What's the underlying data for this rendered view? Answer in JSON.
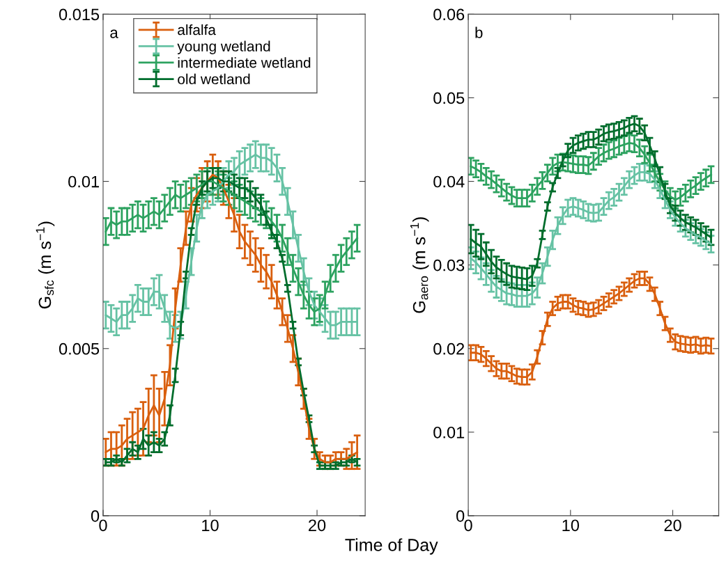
{
  "chart_data": [
    {
      "type": "line",
      "annotations": [
        "a"
      ],
      "xlabel": "Time of Day",
      "ylabel": "G$_{sfc}$ (m s$^{−1}$)",
      "x": [
        0.25,
        0.75,
        1.25,
        1.75,
        2.25,
        2.75,
        3.25,
        3.75,
        4.25,
        4.75,
        5.25,
        5.75,
        6.25,
        6.75,
        7.25,
        7.75,
        8.25,
        8.75,
        9.25,
        9.75,
        10.25,
        10.75,
        11.25,
        11.75,
        12.25,
        12.75,
        13.25,
        13.75,
        14.25,
        14.75,
        15.25,
        15.75,
        16.25,
        16.75,
        17.25,
        17.75,
        18.25,
        18.75,
        19.25,
        19.75,
        20.25,
        20.75,
        21.25,
        21.75,
        22.25,
        22.75,
        23.25,
        23.75
      ],
      "xlim": [
        0,
        24.5
      ],
      "xticks": [
        0,
        10,
        20
      ],
      "ylim": [
        0,
        0.015
      ],
      "yticks": [
        0,
        0.005,
        0.01,
        0.015
      ],
      "grid": false,
      "legend": "top left",
      "marker": "none",
      "line_style": "solid",
      "series": [
        {
          "name": "alfalfa",
          "color": "#d95f0e",
          "values": [
            0.0019,
            0.002,
            0.002,
            0.0021,
            0.0023,
            0.0024,
            0.0025,
            0.0026,
            0.003,
            0.0033,
            0.003,
            0.0035,
            0.0045,
            0.0062,
            0.0075,
            0.0086,
            0.0093,
            0.0096,
            0.0098,
            0.01,
            0.0102,
            0.0101,
            0.0098,
            0.0094,
            0.009,
            0.0085,
            0.0082,
            0.008,
            0.0078,
            0.0075,
            0.0073,
            0.007,
            0.0066,
            0.0061,
            0.0056,
            0.005,
            0.0043,
            0.0035,
            0.0026,
            0.002,
            0.0017,
            0.0016,
            0.0016,
            0.0017,
            0.0017,
            0.0017,
            0.0018,
            0.0019
          ],
          "errors": [
            0.0004,
            0.0005,
            0.0005,
            0.0006,
            0.0006,
            0.0007,
            0.0007,
            0.0008,
            0.0008,
            0.0009,
            0.0008,
            0.0008,
            0.0006,
            0.0006,
            0.0005,
            0.0005,
            0.0005,
            0.0005,
            0.0006,
            0.0006,
            0.0006,
            0.0005,
            0.0005,
            0.0005,
            0.0005,
            0.0005,
            0.0005,
            0.0005,
            0.0005,
            0.0005,
            0.0005,
            0.0005,
            0.0004,
            0.0004,
            0.0004,
            0.0004,
            0.0004,
            0.0003,
            0.0003,
            0.0003,
            0.0002,
            0.0002,
            0.0002,
            0.0002,
            0.0002,
            0.0003,
            0.0004,
            0.0005
          ]
        },
        {
          "name": "young wetland",
          "color": "#66c2a4",
          "values": [
            0.006,
            0.0059,
            0.0058,
            0.006,
            0.006,
            0.0062,
            0.0065,
            0.0064,
            0.0064,
            0.0067,
            0.0067,
            0.0062,
            0.0057,
            0.0056,
            0.0057,
            0.0066,
            0.0076,
            0.0086,
            0.0093,
            0.0096,
            0.0097,
            0.0098,
            0.01,
            0.0102,
            0.0103,
            0.0105,
            0.0106,
            0.0107,
            0.0108,
            0.0107,
            0.0107,
            0.0106,
            0.0104,
            0.01,
            0.0094,
            0.0087,
            0.008,
            0.0073,
            0.0067,
            0.0063,
            0.0061,
            0.0059,
            0.0057,
            0.0057,
            0.0058,
            0.0058,
            0.0058,
            0.0058
          ],
          "errors": [
            0.0004,
            0.0004,
            0.0004,
            0.0004,
            0.0004,
            0.0004,
            0.0004,
            0.0004,
            0.0004,
            0.0004,
            0.0005,
            0.0004,
            0.0004,
            0.0004,
            0.0004,
            0.0004,
            0.0004,
            0.0004,
            0.0004,
            0.0004,
            0.0004,
            0.0004,
            0.0004,
            0.0004,
            0.0004,
            0.0004,
            0.0004,
            0.0004,
            0.0004,
            0.0004,
            0.0004,
            0.0004,
            0.0004,
            0.0004,
            0.0004,
            0.0004,
            0.0004,
            0.0004,
            0.0004,
            0.0004,
            0.0004,
            0.0004,
            0.0004,
            0.0004,
            0.0004,
            0.0004,
            0.0004,
            0.0004
          ]
        },
        {
          "name": "intermediate wetland",
          "color": "#2ca25f",
          "values": [
            0.0085,
            0.0088,
            0.0087,
            0.0088,
            0.0088,
            0.0089,
            0.009,
            0.0089,
            0.009,
            0.0091,
            0.009,
            0.0092,
            0.0094,
            0.0096,
            0.0095,
            0.0096,
            0.0097,
            0.0098,
            0.0099,
            0.01,
            0.01,
            0.0099,
            0.0098,
            0.0097,
            0.0096,
            0.0095,
            0.0094,
            0.0093,
            0.0092,
            0.0091,
            0.009,
            0.0088,
            0.0086,
            0.0083,
            0.0079,
            0.0074,
            0.007,
            0.0066,
            0.0063,
            0.0061,
            0.0062,
            0.0066,
            0.0071,
            0.0074,
            0.0077,
            0.0079,
            0.0081,
            0.0083
          ],
          "errors": [
            0.0004,
            0.0004,
            0.0004,
            0.0004,
            0.0004,
            0.0004,
            0.0004,
            0.0004,
            0.0004,
            0.0004,
            0.0004,
            0.0004,
            0.0004,
            0.0004,
            0.0004,
            0.0004,
            0.0004,
            0.0004,
            0.0004,
            0.0004,
            0.0004,
            0.0004,
            0.0004,
            0.0004,
            0.0004,
            0.0004,
            0.0004,
            0.0004,
            0.0004,
            0.0004,
            0.0004,
            0.0004,
            0.0004,
            0.0004,
            0.0004,
            0.0004,
            0.0004,
            0.0004,
            0.0004,
            0.0004,
            0.0004,
            0.0004,
            0.0004,
            0.0004,
            0.0004,
            0.0004,
            0.0004,
            0.0004
          ]
        },
        {
          "name": "old wetland",
          "color": "#006d2c",
          "values": [
            0.0016,
            0.0016,
            0.0017,
            0.0016,
            0.0018,
            0.002,
            0.0019,
            0.0023,
            0.0021,
            0.0022,
            0.0021,
            0.0023,
            0.003,
            0.0042,
            0.0056,
            0.0072,
            0.0085,
            0.0094,
            0.0098,
            0.01,
            0.0101,
            0.0101,
            0.01,
            0.01,
            0.0099,
            0.0098,
            0.0098,
            0.0097,
            0.0095,
            0.0093,
            0.0089,
            0.0085,
            0.0082,
            0.0077,
            0.0068,
            0.0057,
            0.0046,
            0.0037,
            0.0029,
            0.002,
            0.0015,
            0.0015,
            0.0015,
            0.0015,
            0.0016,
            0.0016,
            0.0017,
            0.0016
          ],
          "errors": [
            0.0001,
            0.0001,
            0.0001,
            0.0001,
            0.0002,
            0.0002,
            0.0002,
            0.0003,
            0.0003,
            0.0003,
            0.0002,
            0.0002,
            0.0003,
            0.0002,
            0.0002,
            0.0001,
            0.0001,
            0.0001,
            0.0002,
            0.0003,
            0.0003,
            0.0003,
            0.0003,
            0.0003,
            0.0003,
            0.0003,
            0.0003,
            0.0003,
            0.0003,
            0.0003,
            0.0002,
            0.0002,
            0.0002,
            0.0001,
            0.0001,
            0.0001,
            0.0001,
            0.0001,
            0.0001,
            0.0001,
            0.0001,
            0.0001,
            0.0001,
            0.0001,
            0.0001,
            0.0001,
            0.0001,
            0.0001
          ]
        }
      ]
    },
    {
      "type": "line",
      "annotations": [
        "b"
      ],
      "ylabel": "G$_{aero}$ (m s$^{−1}$)",
      "x": [
        0.25,
        0.75,
        1.25,
        1.75,
        2.25,
        2.75,
        3.25,
        3.75,
        4.25,
        4.75,
        5.25,
        5.75,
        6.25,
        6.75,
        7.25,
        7.75,
        8.25,
        8.75,
        9.25,
        9.75,
        10.25,
        10.75,
        11.25,
        11.75,
        12.25,
        12.75,
        13.25,
        13.75,
        14.25,
        14.75,
        15.25,
        15.75,
        16.25,
        16.75,
        17.25,
        17.75,
        18.25,
        18.75,
        19.25,
        19.75,
        20.25,
        20.75,
        21.25,
        21.75,
        22.25,
        22.75,
        23.25,
        23.75
      ],
      "xlim": [
        0,
        24.5
      ],
      "xticks": [
        0,
        10,
        20
      ],
      "ylim": [
        0,
        0.06
      ],
      "yticks": [
        0,
        0.01,
        0.02,
        0.03,
        0.04,
        0.05,
        0.06
      ],
      "grid": false,
      "marker": "none",
      "line_style": "solid",
      "series": [
        {
          "color": "#d95f0e",
          "values": [
            0.0195,
            0.0195,
            0.0193,
            0.0188,
            0.0182,
            0.0176,
            0.0173,
            0.0173,
            0.017,
            0.0167,
            0.0166,
            0.0166,
            0.0172,
            0.019,
            0.0213,
            0.0235,
            0.0248,
            0.0254,
            0.0256,
            0.0256,
            0.0252,
            0.0249,
            0.0248,
            0.0246,
            0.0247,
            0.025,
            0.0254,
            0.0258,
            0.0262,
            0.0266,
            0.0271,
            0.0276,
            0.0281,
            0.0284,
            0.0284,
            0.0277,
            0.0265,
            0.0248,
            0.023,
            0.0216,
            0.0208,
            0.0206,
            0.0205,
            0.0204,
            0.0205,
            0.0203,
            0.0204,
            0.0203
          ],
          "errors": [
            0.0009,
            0.0009,
            0.0009,
            0.0009,
            0.0009,
            0.0009,
            0.0009,
            0.0009,
            0.0009,
            0.0009,
            0.0009,
            0.0009,
            0.0009,
            0.0008,
            0.0008,
            0.0008,
            0.0008,
            0.0008,
            0.0008,
            0.0008,
            0.0008,
            0.0008,
            0.0008,
            0.0008,
            0.0008,
            0.0008,
            0.0008,
            0.0008,
            0.0008,
            0.0008,
            0.0008,
            0.0008,
            0.0008,
            0.0008,
            0.0008,
            0.0008,
            0.0008,
            0.0008,
            0.0008,
            0.0008,
            0.0009,
            0.0009,
            0.0009,
            0.0009,
            0.0009,
            0.0009,
            0.0009,
            0.0009
          ]
        },
        {
          "color": "#66c2a4",
          "values": [
            0.0308,
            0.0303,
            0.0296,
            0.0289,
            0.0281,
            0.0274,
            0.027,
            0.0266,
            0.0265,
            0.0263,
            0.0263,
            0.0263,
            0.0266,
            0.0273,
            0.029,
            0.031,
            0.033,
            0.0347,
            0.0359,
            0.0368,
            0.037,
            0.0368,
            0.0366,
            0.0363,
            0.0362,
            0.0363,
            0.037,
            0.0377,
            0.0381,
            0.0387,
            0.0394,
            0.0402,
            0.0407,
            0.0411,
            0.0411,
            0.0409,
            0.0402,
            0.039,
            0.0378,
            0.0366,
            0.0357,
            0.035,
            0.0344,
            0.034,
            0.0336,
            0.0333,
            0.0329,
            0.0325
          ],
          "errors": [
            0.0013,
            0.0013,
            0.0013,
            0.0013,
            0.0013,
            0.0013,
            0.0013,
            0.0013,
            0.0013,
            0.0013,
            0.0013,
            0.0013,
            0.0013,
            0.0012,
            0.0012,
            0.0011,
            0.0011,
            0.001,
            0.001,
            0.001,
            0.001,
            0.001,
            0.001,
            0.001,
            0.001,
            0.001,
            0.001,
            0.001,
            0.001,
            0.001,
            0.001,
            0.001,
            0.001,
            0.001,
            0.001,
            0.001,
            0.001,
            0.001,
            0.001,
            0.001,
            0.001,
            0.001,
            0.001,
            0.001,
            0.001,
            0.001,
            0.001,
            0.001
          ]
        },
        {
          "color": "#2ca25f",
          "values": [
            0.0418,
            0.0415,
            0.0411,
            0.0406,
            0.0402,
            0.0397,
            0.0392,
            0.0387,
            0.0383,
            0.038,
            0.038,
            0.038,
            0.0386,
            0.0394,
            0.0401,
            0.041,
            0.0418,
            0.0422,
            0.0423,
            0.0422,
            0.0421,
            0.042,
            0.042,
            0.0419,
            0.0424,
            0.043,
            0.0434,
            0.0437,
            0.0439,
            0.0442,
            0.0444,
            0.0446,
            0.0445,
            0.044,
            0.0432,
            0.0422,
            0.041,
            0.0399,
            0.039,
            0.0382,
            0.0378,
            0.0381,
            0.0386,
            0.0391,
            0.0395,
            0.04,
            0.0404,
            0.0408
          ],
          "errors": [
            0.001,
            0.001,
            0.001,
            0.001,
            0.001,
            0.001,
            0.001,
            0.001,
            0.001,
            0.001,
            0.001,
            0.001,
            0.001,
            0.001,
            0.001,
            0.001,
            0.001,
            0.001,
            0.001,
            0.001,
            0.001,
            0.001,
            0.001,
            0.001,
            0.001,
            0.001,
            0.001,
            0.001,
            0.001,
            0.001,
            0.001,
            0.001,
            0.001,
            0.001,
            0.001,
            0.001,
            0.001,
            0.001,
            0.001,
            0.001,
            0.001,
            0.001,
            0.001,
            0.001,
            0.001,
            0.001,
            0.001,
            0.001
          ]
        },
        {
          "color": "#006d2c",
          "values": [
            0.0331,
            0.0326,
            0.0322,
            0.0313,
            0.0304,
            0.0297,
            0.0293,
            0.0289,
            0.0286,
            0.0285,
            0.0284,
            0.0283,
            0.0287,
            0.0302,
            0.0336,
            0.037,
            0.0393,
            0.041,
            0.0425,
            0.0437,
            0.0443,
            0.0446,
            0.0448,
            0.045,
            0.045,
            0.0453,
            0.0457,
            0.0459,
            0.046,
            0.0462,
            0.0464,
            0.0467,
            0.0469,
            0.0466,
            0.0458,
            0.0443,
            0.0427,
            0.0408,
            0.0388,
            0.0371,
            0.0362,
            0.0356,
            0.0351,
            0.0348,
            0.0345,
            0.0341,
            0.0337,
            0.0333
          ],
          "errors": [
            0.0017,
            0.0016,
            0.0015,
            0.0014,
            0.0014,
            0.0013,
            0.0013,
            0.0013,
            0.0013,
            0.0013,
            0.0013,
            0.0013,
            0.0012,
            0.0005,
            0.0005,
            0.0005,
            0.0005,
            0.0006,
            0.0007,
            0.0008,
            0.0009,
            0.0009,
            0.0009,
            0.0009,
            0.0009,
            0.0009,
            0.0009,
            0.0009,
            0.0009,
            0.0009,
            0.0009,
            0.0009,
            0.0009,
            0.0009,
            0.0009,
            0.0009,
            0.0009,
            0.0009,
            0.0009,
            0.0009,
            0.0009,
            0.0009,
            0.0009,
            0.0009,
            0.0009,
            0.0009,
            0.0009,
            0.0009
          ]
        }
      ]
    }
  ]
}
